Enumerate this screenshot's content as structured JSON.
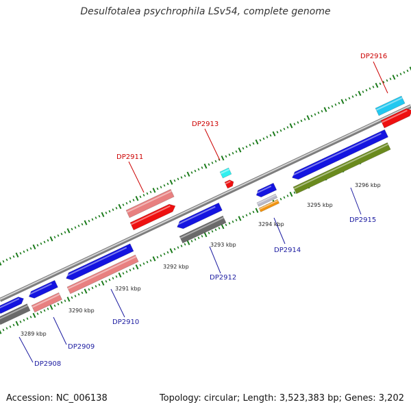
{
  "title": "Desulfotalea psychrophila LSv54, complete genome",
  "footer": {
    "accession": "Accession: NC_006138",
    "topology": "Topology: circular; Length: 3,523,383 bp; Genes: 3,202"
  },
  "colors": {
    "blue": "#1414e0",
    "pink": "#e88080",
    "red": "#ee1010",
    "gray": "#6a6a6a",
    "cyan": "#22c8f0",
    "olive": "#6a8a1e",
    "orange": "#f29410",
    "silver": "#b8b8c8",
    "aqua": "#30f0f0",
    "tick": "#1a7a1a",
    "label_blue": "#1a1aa0",
    "label_red": "#cc0000"
  },
  "kbp_marks": [
    "3289 kbp",
    "3290 kbp",
    "3291 kbp",
    "3292 kbp",
    "3293 kbp",
    "3294 kbp",
    "3295 kbp",
    "3296 kbp"
  ],
  "gene_labels": [
    {
      "id": "DP2908",
      "color": "label_blue"
    },
    {
      "id": "DP2909",
      "color": "label_blue"
    },
    {
      "id": "DP2910",
      "color": "label_blue"
    },
    {
      "id": "DP2911",
      "color": "label_red"
    },
    {
      "id": "DP2912",
      "color": "label_blue"
    },
    {
      "id": "DP2913",
      "color": "label_red"
    },
    {
      "id": "DP2914",
      "color": "label_blue"
    },
    {
      "id": "DP2915",
      "color": "label_blue"
    },
    {
      "id": "DP2916",
      "color": "label_red"
    }
  ]
}
